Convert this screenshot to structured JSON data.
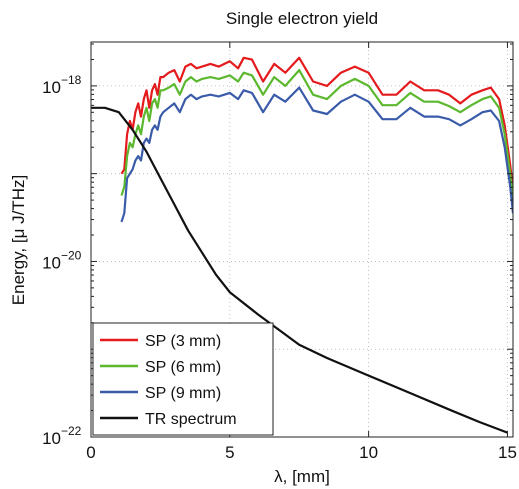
{
  "chart_data": {
    "type": "line",
    "title": "Single electron yield",
    "xlabel": "λ, [mm]",
    "ylabel": "Energy, [μ J/THz]",
    "xlim": [
      0,
      15.2
    ],
    "ylim_log10": [
      -22,
      -17.5
    ],
    "y_scale": "log",
    "grid": true,
    "legend_position": "bottom-left",
    "x_ticks": [
      {
        "value": 0,
        "label": "0"
      },
      {
        "value": 5,
        "label": "5"
      },
      {
        "value": 10,
        "label": "10"
      },
      {
        "value": 15,
        "label": "15"
      }
    ],
    "y_ticks": [
      {
        "exp": -18,
        "base": "10",
        "sup": "−18"
      },
      {
        "exp": -20,
        "base": "10",
        "sup": "−20"
      },
      {
        "exp": -22,
        "base": "10",
        "sup": "−22"
      }
    ],
    "series": [
      {
        "name": "SP (3 mm)",
        "color": "#e41a1c",
        "x": [
          1.1,
          1.2,
          1.3,
          1.4,
          1.5,
          1.6,
          1.7,
          1.8,
          1.9,
          2.0,
          2.1,
          2.2,
          2.3,
          2.4,
          2.5,
          2.6,
          2.8,
          3.0,
          3.2,
          3.4,
          3.6,
          3.8,
          4.0,
          4.3,
          4.6,
          5.0,
          5.3,
          5.5,
          5.8,
          6.2,
          6.6,
          7.0,
          7.5,
          8.0,
          8.5,
          9.0,
          9.5,
          10.0,
          10.5,
          11.0,
          11.5,
          12.0,
          12.5,
          12.9,
          13.3,
          13.7,
          14.1,
          14.4,
          14.7,
          14.9,
          15.1,
          15.2
        ],
        "y_log10": [
          -19.0,
          -18.95,
          -18.55,
          -18.4,
          -18.5,
          -18.3,
          -18.2,
          -18.35,
          -18.15,
          -18.05,
          -18.25,
          -18.05,
          -17.98,
          -18.1,
          -17.9,
          -17.9,
          -17.85,
          -17.82,
          -17.95,
          -17.78,
          -17.75,
          -17.8,
          -17.78,
          -17.75,
          -17.78,
          -17.72,
          -17.8,
          -17.68,
          -17.7,
          -17.95,
          -17.75,
          -17.85,
          -17.68,
          -17.95,
          -18.0,
          -17.85,
          -17.78,
          -17.85,
          -18.1,
          -18.1,
          -17.95,
          -18.05,
          -18.05,
          -18.1,
          -18.2,
          -18.1,
          -18.05,
          -18.02,
          -18.15,
          -18.45,
          -18.9,
          -19.2
        ]
      },
      {
        "name": "SP (6 mm)",
        "color": "#5cb82e",
        "x": [
          1.1,
          1.2,
          1.3,
          1.4,
          1.5,
          1.6,
          1.7,
          1.8,
          1.9,
          2.0,
          2.1,
          2.2,
          2.3,
          2.4,
          2.5,
          2.6,
          2.8,
          3.0,
          3.2,
          3.4,
          3.6,
          3.8,
          4.0,
          4.3,
          4.6,
          5.0,
          5.3,
          5.5,
          5.8,
          6.2,
          6.6,
          7.0,
          7.5,
          8.0,
          8.5,
          9.0,
          9.5,
          10.0,
          10.5,
          11.0,
          11.5,
          12.0,
          12.5,
          12.9,
          13.3,
          13.7,
          14.1,
          14.4,
          14.7,
          14.9,
          15.1,
          15.2
        ],
        "y_log10": [
          -19.25,
          -19.15,
          -18.8,
          -18.65,
          -18.7,
          -18.55,
          -18.45,
          -18.55,
          -18.35,
          -18.25,
          -18.4,
          -18.2,
          -18.15,
          -18.25,
          -18.05,
          -18.05,
          -18.02,
          -17.98,
          -18.1,
          -17.95,
          -17.9,
          -17.95,
          -17.92,
          -17.9,
          -17.92,
          -17.88,
          -17.95,
          -17.85,
          -17.88,
          -18.1,
          -17.9,
          -18.0,
          -17.82,
          -18.1,
          -18.15,
          -18.0,
          -17.92,
          -18.0,
          -18.22,
          -18.22,
          -18.08,
          -18.18,
          -18.18,
          -18.23,
          -18.3,
          -18.22,
          -18.15,
          -18.12,
          -18.25,
          -18.55,
          -19.0,
          -19.3
        ]
      },
      {
        "name": "SP (9 mm)",
        "color": "#3a5ba9",
        "x": [
          1.1,
          1.2,
          1.3,
          1.4,
          1.5,
          1.6,
          1.7,
          1.8,
          1.9,
          2.0,
          2.1,
          2.2,
          2.3,
          2.4,
          2.5,
          2.6,
          2.8,
          3.0,
          3.2,
          3.4,
          3.6,
          3.8,
          4.0,
          4.3,
          4.6,
          5.0,
          5.3,
          5.5,
          5.8,
          6.2,
          6.6,
          7.0,
          7.5,
          8.0,
          8.5,
          9.0,
          9.5,
          10.0,
          10.5,
          11.0,
          11.5,
          12.0,
          12.5,
          12.9,
          13.3,
          13.7,
          14.1,
          14.4,
          14.7,
          14.9,
          15.1,
          15.2
        ],
        "y_log10": [
          -19.55,
          -19.45,
          -19.05,
          -19.0,
          -18.95,
          -18.85,
          -18.8,
          -18.85,
          -18.65,
          -18.6,
          -18.65,
          -18.5,
          -18.45,
          -18.5,
          -18.35,
          -18.3,
          -18.25,
          -18.2,
          -18.3,
          -18.15,
          -18.1,
          -18.15,
          -18.12,
          -18.1,
          -18.12,
          -18.08,
          -18.15,
          -18.05,
          -18.08,
          -18.3,
          -18.1,
          -18.18,
          -18.02,
          -18.28,
          -18.32,
          -18.18,
          -18.1,
          -18.18,
          -18.38,
          -18.38,
          -18.25,
          -18.35,
          -18.35,
          -18.38,
          -18.45,
          -18.38,
          -18.3,
          -18.28,
          -18.4,
          -18.7,
          -19.15,
          -19.45
        ]
      },
      {
        "name": "TR spectrum",
        "color": "#111111",
        "x": [
          0,
          0.5,
          1.0,
          1.5,
          2.0,
          2.5,
          3.0,
          3.5,
          4.0,
          4.5,
          5.0,
          6.0,
          7.5,
          8.5,
          10.0,
          11.5,
          13.0,
          14.0,
          15.0
        ],
        "y_log10": [
          -18.25,
          -18.25,
          -18.3,
          -18.5,
          -18.75,
          -19.05,
          -19.35,
          -19.65,
          -19.9,
          -20.15,
          -20.35,
          -20.6,
          -20.95,
          -21.1,
          -21.3,
          -21.5,
          -21.7,
          -21.83,
          -21.95
        ]
      }
    ]
  }
}
